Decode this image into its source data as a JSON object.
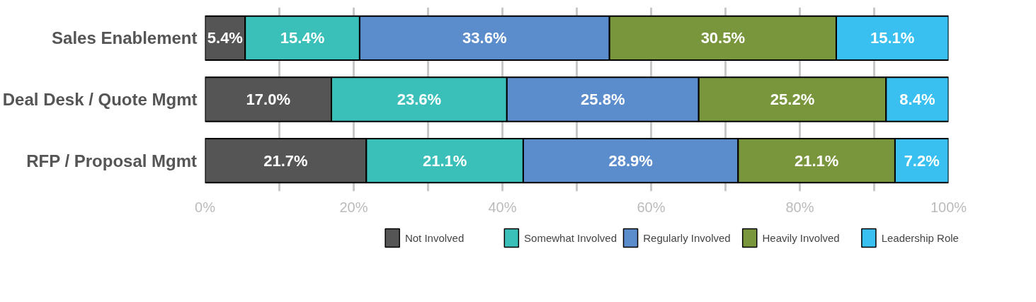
{
  "chart_data": {
    "type": "bar",
    "orientation": "horizontal",
    "stacked": true,
    "categories": [
      "Sales Enablement",
      "Deal Desk / Quote Mgmt",
      "RFP / Proposal Mgmt"
    ],
    "series": [
      {
        "name": "Not Involved",
        "color": "#555555",
        "values": [
          5.4,
          17.0,
          21.7
        ],
        "value_labels": [
          "5.4%",
          "17.0%",
          "21.7%"
        ]
      },
      {
        "name": "Somewhat Involved",
        "color": "#3bbfb9",
        "values": [
          15.4,
          23.6,
          21.1
        ],
        "value_labels": [
          "15.4%",
          "23.6%",
          "21.1%"
        ]
      },
      {
        "name": "Regularly Involved",
        "color": "#5b8ccc",
        "values": [
          33.6,
          25.8,
          28.9
        ],
        "value_labels": [
          "33.6%",
          "25.8%",
          "28.9%"
        ]
      },
      {
        "name": "Heavily Involved",
        "color": "#79963c",
        "values": [
          30.5,
          25.2,
          21.1
        ],
        "value_labels": [
          "30.5%",
          "25.2%",
          "21.1%"
        ]
      },
      {
        "name": "Leadership Role",
        "color": "#39c0f0",
        "values": [
          15.1,
          8.4,
          7.2
        ],
        "value_labels": [
          "15.1%",
          "8.4%",
          "7.2%"
        ]
      }
    ],
    "xlim": [
      0,
      100
    ],
    "xticks": [
      {
        "value": 0,
        "label": "0%"
      },
      {
        "value": 10,
        "label": null
      },
      {
        "value": 20,
        "label": "20%"
      },
      {
        "value": 30,
        "label": null
      },
      {
        "value": 40,
        "label": "40%"
      },
      {
        "value": 50,
        "label": null
      },
      {
        "value": 60,
        "label": "60%"
      },
      {
        "value": 70,
        "label": null
      },
      {
        "value": 80,
        "label": "80%"
      },
      {
        "value": 90,
        "label": null
      },
      {
        "value": 100,
        "label": "100%"
      }
    ],
    "grid": "x",
    "legend": "bottom"
  }
}
